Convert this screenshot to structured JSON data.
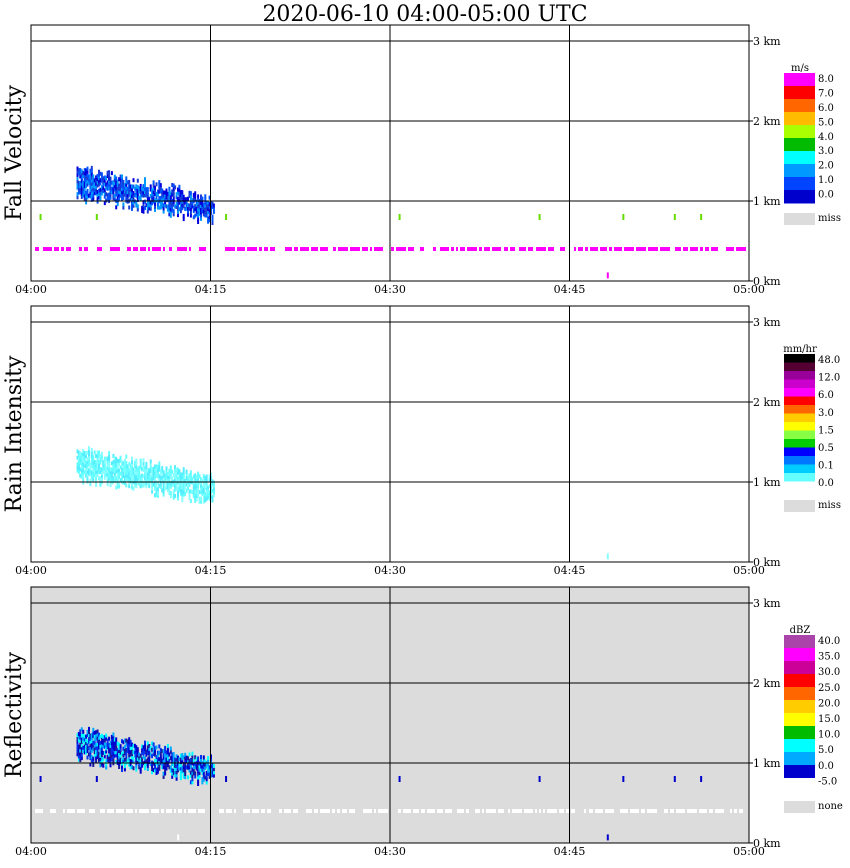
{
  "title": "2020-06-10   04:00-05:00 UTC",
  "x_ticks": [
    "04:00",
    "04:15",
    "04:30",
    "04:45",
    "05:00"
  ],
  "height_ticks": [
    "3 km",
    "2 km",
    "1 km",
    "0 km"
  ],
  "chart_data": [
    {
      "type": "heatmap",
      "ylabel": "Fall Velocity",
      "xlim": [
        "04:00",
        "05:00"
      ],
      "ylim_km": [
        0,
        3.2
      ],
      "grid": true,
      "background": "#ffffff",
      "legend": {
        "unit": "m/s",
        "labels": [
          "8.0",
          "7.0",
          "6.0",
          "5.0",
          "4.0",
          "3.0",
          "2.0",
          "1.0",
          "0.0"
        ],
        "missing_label": "miss",
        "missing_color": "#dcdcdc",
        "colors": [
          "#ff00ff",
          "#ff0000",
          "#ff6600",
          "#ffbb00",
          "#aaff00",
          "#00bb00",
          "#00ffff",
          "#0099ff",
          "#0044ff",
          "#0000cc"
        ]
      },
      "echo": {
        "start_min": 3.8,
        "end_min": 15.3,
        "top_km_start": 1.45,
        "top_km_end": 1.05,
        "base_km_start": 1.1,
        "base_km_end": 0.8,
        "colors": [
          "#0000dd",
          "#0055ff",
          "#0099ff",
          "#1a3bd6"
        ]
      },
      "near_ground_band": {
        "height_km": 0.4,
        "color": "#ff00ff"
      },
      "scattered_points": [
        {
          "minute": 0.8,
          "height_km": 0.8,
          "color": "#66dd00"
        },
        {
          "minute": 5.5,
          "height_km": 0.8,
          "color": "#66dd00"
        },
        {
          "minute": 16.3,
          "height_km": 0.8,
          "color": "#66dd00"
        },
        {
          "minute": 30.8,
          "height_km": 0.8,
          "color": "#66dd00"
        },
        {
          "minute": 42.5,
          "height_km": 0.8,
          "color": "#66dd00"
        },
        {
          "minute": 49.5,
          "height_km": 0.8,
          "color": "#66dd00"
        },
        {
          "minute": 53.8,
          "height_km": 0.8,
          "color": "#66dd00"
        },
        {
          "minute": 56.0,
          "height_km": 0.8,
          "color": "#66dd00"
        },
        {
          "minute": 48.2,
          "height_km": 0.07,
          "color": "#ff00ff"
        }
      ]
    },
    {
      "type": "heatmap",
      "ylabel": "Rain Intensity",
      "xlim": [
        "04:00",
        "05:00"
      ],
      "ylim_km": [
        0,
        3.2
      ],
      "grid": true,
      "background": "#ffffff",
      "legend": {
        "unit": "mm/hr",
        "labels": [
          "48.0",
          "12.0",
          "6.0",
          "3.0",
          "1.5",
          "0.5",
          "0.1",
          "0.0"
        ],
        "missing_label": "miss",
        "missing_color": "#dcdcdc",
        "colors": [
          "#000000",
          "#550033",
          "#990099",
          "#cc00cc",
          "#ff00ff",
          "#ff0000",
          "#ff6600",
          "#ffcc00",
          "#ffff00",
          "#88ff44",
          "#00cc00",
          "#0000ff",
          "#0077ff",
          "#00ccff",
          "#66ffff",
          "#ffffff"
        ]
      },
      "echo": {
        "start_min": 3.8,
        "end_min": 15.3,
        "top_km_start": 1.45,
        "top_km_end": 1.05,
        "base_km_start": 1.1,
        "base_km_end": 0.8,
        "colors": [
          "#66ffff",
          "#88ffff",
          "#55eeff"
        ]
      },
      "scattered_points": [
        {
          "minute": 48.2,
          "height_km": 0.07,
          "color": "#88ffff"
        }
      ]
    },
    {
      "type": "heatmap",
      "ylabel": "Reflectivity",
      "xlim": [
        "04:00",
        "05:00"
      ],
      "ylim_km": [
        0,
        3.2
      ],
      "grid": true,
      "background": "#dcdcdc",
      "legend": {
        "unit": "dBZ",
        "labels": [
          "40.0",
          "35.0",
          "30.0",
          "25.0",
          "20.0",
          "15.0",
          "10.0",
          "5.0",
          "0.0",
          "-5.0"
        ],
        "missing_label": "none",
        "missing_color": "#dcdcdc",
        "colors": [
          "#aa44aa",
          "#ff00ff",
          "#cc0099",
          "#ff0000",
          "#ff6600",
          "#ffcc00",
          "#ffff00",
          "#00bb00",
          "#00ffff",
          "#00aaff",
          "#0000cc",
          "#ffffff"
        ]
      },
      "echo": {
        "start_min": 3.8,
        "end_min": 15.3,
        "top_km_start": 1.45,
        "top_km_end": 1.05,
        "base_km_start": 1.1,
        "base_km_end": 0.8,
        "colors": [
          "#0000cc",
          "#0033ee",
          "#00aaff",
          "#1a1aa0",
          "#00ffff"
        ]
      },
      "near_ground_band": {
        "height_km": 0.4,
        "color": "#ffffff"
      },
      "scattered_points": [
        {
          "minute": 0.8,
          "height_km": 0.8,
          "color": "#0000cc"
        },
        {
          "minute": 5.5,
          "height_km": 0.8,
          "color": "#0000cc"
        },
        {
          "minute": 16.3,
          "height_km": 0.8,
          "color": "#0000cc"
        },
        {
          "minute": 30.8,
          "height_km": 0.8,
          "color": "#0000cc"
        },
        {
          "minute": 42.5,
          "height_km": 0.8,
          "color": "#0000cc"
        },
        {
          "minute": 49.5,
          "height_km": 0.8,
          "color": "#0000cc"
        },
        {
          "minute": 53.8,
          "height_km": 0.8,
          "color": "#0000cc"
        },
        {
          "minute": 56.0,
          "height_km": 0.8,
          "color": "#0000cc"
        },
        {
          "minute": 48.2,
          "height_km": 0.07,
          "color": "#0000cc"
        },
        {
          "minute": 12.3,
          "height_km": 0.07,
          "color": "#ffffff"
        }
      ]
    }
  ]
}
